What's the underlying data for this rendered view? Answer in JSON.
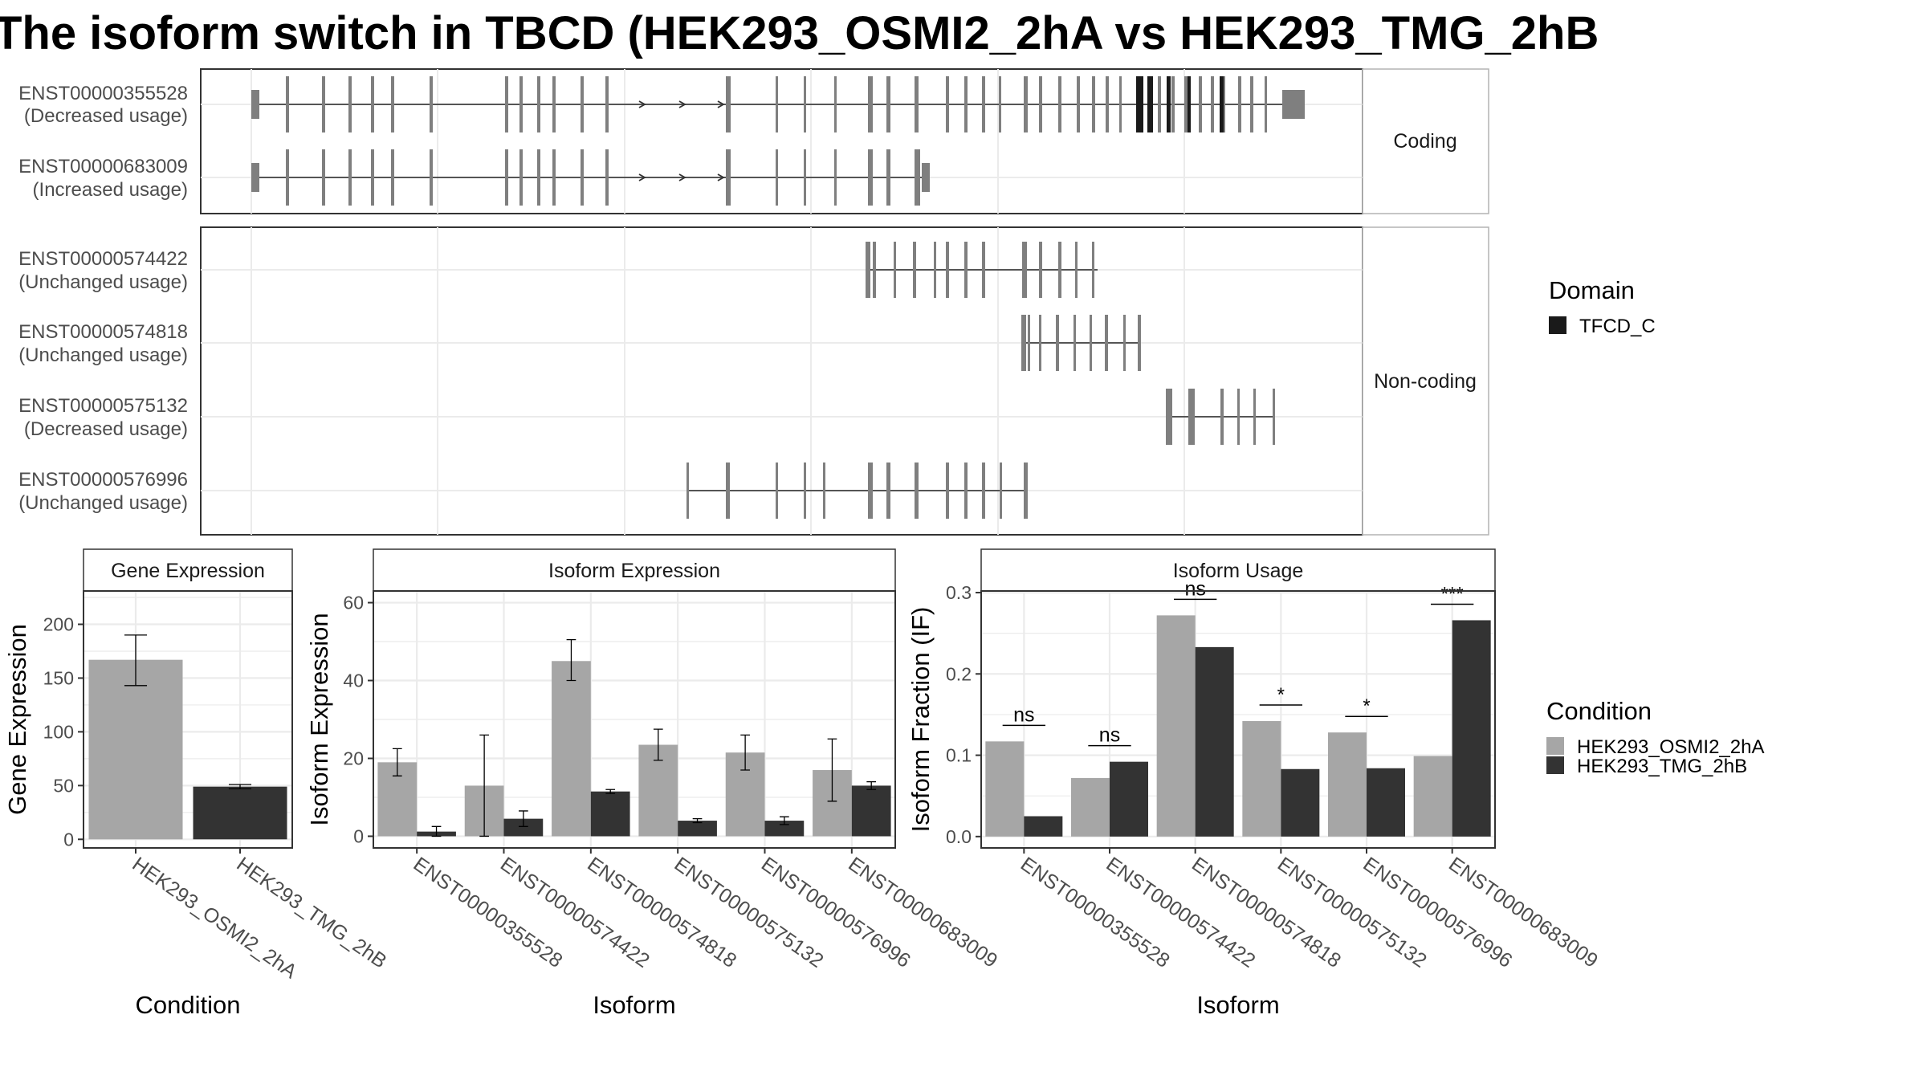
{
  "title": "The isoform switch in TBCD (HEK293_OSMI2_2hA vs HEK293_TMG_2hB",
  "colors": {
    "condition_a": "#a6a6a6",
    "condition_b": "#333333",
    "exon": "#7f7f7f",
    "domain": "#1a1a1a",
    "grid": "#ebebeb",
    "strip_fill": "#ffffff",
    "border": "#333333"
  },
  "transcripts": {
    "facets": [
      {
        "label": "Coding",
        "rows": [
          {
            "id": "ENST00000355528",
            "usage": "(Decreased usage)"
          },
          {
            "id": "ENST00000683009",
            "usage": "(Increased usage)"
          }
        ]
      },
      {
        "label": "Non-coding",
        "rows": [
          {
            "id": "ENST00000574422",
            "usage": "(Unchanged usage)"
          },
          {
            "id": "ENST00000574818",
            "usage": "(Unchanged usage)"
          },
          {
            "id": "ENST00000575132",
            "usage": "(Decreased usage)"
          },
          {
            "id": "ENST00000576996",
            "usage": "(Unchanged usage)"
          }
        ]
      }
    ]
  },
  "legend": {
    "domain_title": "Domain",
    "domain_items": [
      {
        "label": "TFCD_C",
        "color": "#1a1a1a"
      }
    ],
    "condition_title": "Condition",
    "condition_items": [
      {
        "label": "HEK293_OSMI2_2hA",
        "color": "#a6a6a6"
      },
      {
        "label": "HEK293_TMG_2hB",
        "color": "#333333"
      }
    ]
  },
  "chart_data": [
    {
      "type": "bar",
      "title": "Gene Expression",
      "xlabel": "Condition",
      "ylabel": "Gene Expression",
      "categories": [
        "HEK293_OSMI2_2hA",
        "HEK293_TMG_2hB"
      ],
      "values": [
        167,
        49
      ],
      "errors": [
        [
          143,
          190
        ],
        [
          47,
          51
        ]
      ],
      "ylim": [
        -8,
        231
      ],
      "yticks": [
        0,
        50,
        100,
        150,
        200
      ],
      "grid": true
    },
    {
      "type": "bar",
      "title": "Isoform Expression",
      "xlabel": "Isoform",
      "ylabel": "Isoform Expression",
      "categories": [
        "ENST00000355528",
        "ENST00000574422",
        "ENST00000574818",
        "ENST00000575132",
        "ENST00000576996",
        "ENST00000683009"
      ],
      "series": [
        {
          "name": "HEK293_OSMI2_2hA",
          "values": [
            19,
            13,
            45,
            23.5,
            21.5,
            17
          ],
          "errors": [
            [
              15.5,
              22.5
            ],
            [
              0,
              26
            ],
            [
              40,
              50.5
            ],
            [
              19.5,
              27.5
            ],
            [
              17,
              26
            ],
            [
              9,
              25
            ]
          ]
        },
        {
          "name": "HEK293_TMG_2hB",
          "values": [
            1.2,
            4.5,
            11.5,
            4,
            4,
            13
          ],
          "errors": [
            [
              0,
              2.5
            ],
            [
              2.5,
              6.5
            ],
            [
              11,
              12
            ],
            [
              3.5,
              4.5
            ],
            [
              3,
              5
            ],
            [
              12,
              14
            ]
          ]
        }
      ],
      "ylim": [
        -3,
        63
      ],
      "yticks": [
        0,
        20,
        40,
        60
      ],
      "grid": true
    },
    {
      "type": "bar",
      "title": "Isoform Usage",
      "xlabel": "Isoform",
      "ylabel": "Isoform Fraction (IF)",
      "categories": [
        "ENST00000355528",
        "ENST00000574422",
        "ENST00000574818",
        "ENST00000575132",
        "ENST00000576996",
        "ENST00000683009"
      ],
      "series": [
        {
          "name": "HEK293_OSMI2_2hA",
          "values": [
            0.117,
            0.072,
            0.272,
            0.142,
            0.128,
            0.099
          ]
        },
        {
          "name": "HEK293_TMG_2hB",
          "values": [
            0.025,
            0.092,
            0.233,
            0.083,
            0.084,
            0.266
          ]
        }
      ],
      "significance": [
        "ns",
        "ns",
        "ns",
        "*",
        "*",
        "***"
      ],
      "ylim": [
        -0.014,
        0.302
      ],
      "yticks": [
        0.0,
        0.1,
        0.2,
        0.3
      ],
      "grid": true
    }
  ]
}
